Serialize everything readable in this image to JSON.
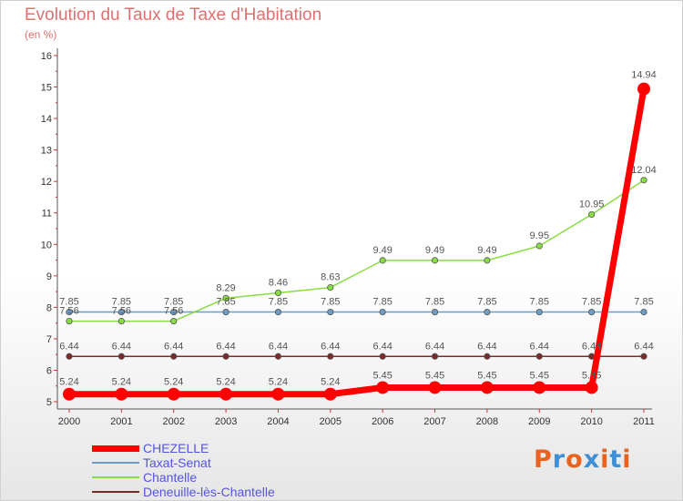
{
  "title": "Evolution du Taux de Taxe d'Habitation",
  "subtitle": "(en %)",
  "logo": {
    "text": "Proxiti",
    "letter_colors": [
      "#e8641e",
      "#3c8fd8",
      "#e8641e",
      "#3c8fd8",
      "#e8641e",
      "#3c8fd8",
      "#e8641e"
    ]
  },
  "chart_data": {
    "type": "line",
    "title": "Evolution du Taux de Taxe d'Habitation",
    "subtitle": "(en %)",
    "xlabel": "",
    "ylabel": "",
    "x": [
      "2000",
      "2001",
      "2002",
      "2003",
      "2004",
      "2005",
      "2006",
      "2007",
      "2008",
      "2009",
      "2010",
      "2011"
    ],
    "ylim": [
      5,
      16
    ],
    "yticks": [
      "5",
      "6",
      "7",
      "8",
      "9",
      "10",
      "11",
      "12",
      "13",
      "14",
      "15",
      "16"
    ],
    "grid": false,
    "legend_position": "bottom-left",
    "series": [
      {
        "name": "CHEZELLE",
        "color": "#ff0000",
        "values": [
          5.24,
          5.24,
          5.24,
          5.24,
          5.24,
          5.24,
          5.45,
          5.45,
          5.45,
          5.45,
          5.45,
          14.94
        ],
        "labels": [
          "5.24",
          "5.24",
          "5.24",
          "5.24",
          "5.24",
          "5.24",
          "5.45",
          "5.45",
          "5.45",
          "5.45",
          "5.45",
          "14.94"
        ]
      },
      {
        "name": "Taxat-Senat",
        "color": "#6b9dc8",
        "values": [
          7.85,
          7.85,
          7.85,
          7.85,
          7.85,
          7.85,
          7.85,
          7.85,
          7.85,
          7.85,
          7.85,
          7.85
        ],
        "labels": [
          "7.85",
          "7.85",
          "7.85",
          "7.85",
          "7.85",
          "7.85",
          "7.85",
          "7.85",
          "7.85",
          "7.85",
          "7.85",
          "7.85"
        ]
      },
      {
        "name": "Chantelle",
        "color": "#88dd44",
        "values": [
          7.56,
          7.56,
          7.56,
          8.29,
          8.46,
          8.63,
          9.49,
          9.49,
          9.49,
          9.95,
          10.95,
          12.04
        ],
        "labels": [
          "7.56",
          "7.56",
          "7.56",
          "8.29",
          "8.46",
          "8.63",
          "9.49",
          "9.49",
          "9.49",
          "9.95",
          "10.95",
          "12.04"
        ]
      },
      {
        "name": "Deneuille-lès-Chantelle",
        "color": "#7a2a2a",
        "values": [
          6.44,
          6.44,
          6.44,
          6.44,
          6.44,
          6.44,
          6.44,
          6.44,
          6.44,
          6.44,
          6.44,
          6.44
        ],
        "labels": [
          "6.44",
          "6.44",
          "6.44",
          "6.44",
          "6.44",
          "6.44",
          "6.44",
          "6.44",
          "6.44",
          "6.44",
          "6.44",
          "6.44"
        ]
      }
    ]
  }
}
